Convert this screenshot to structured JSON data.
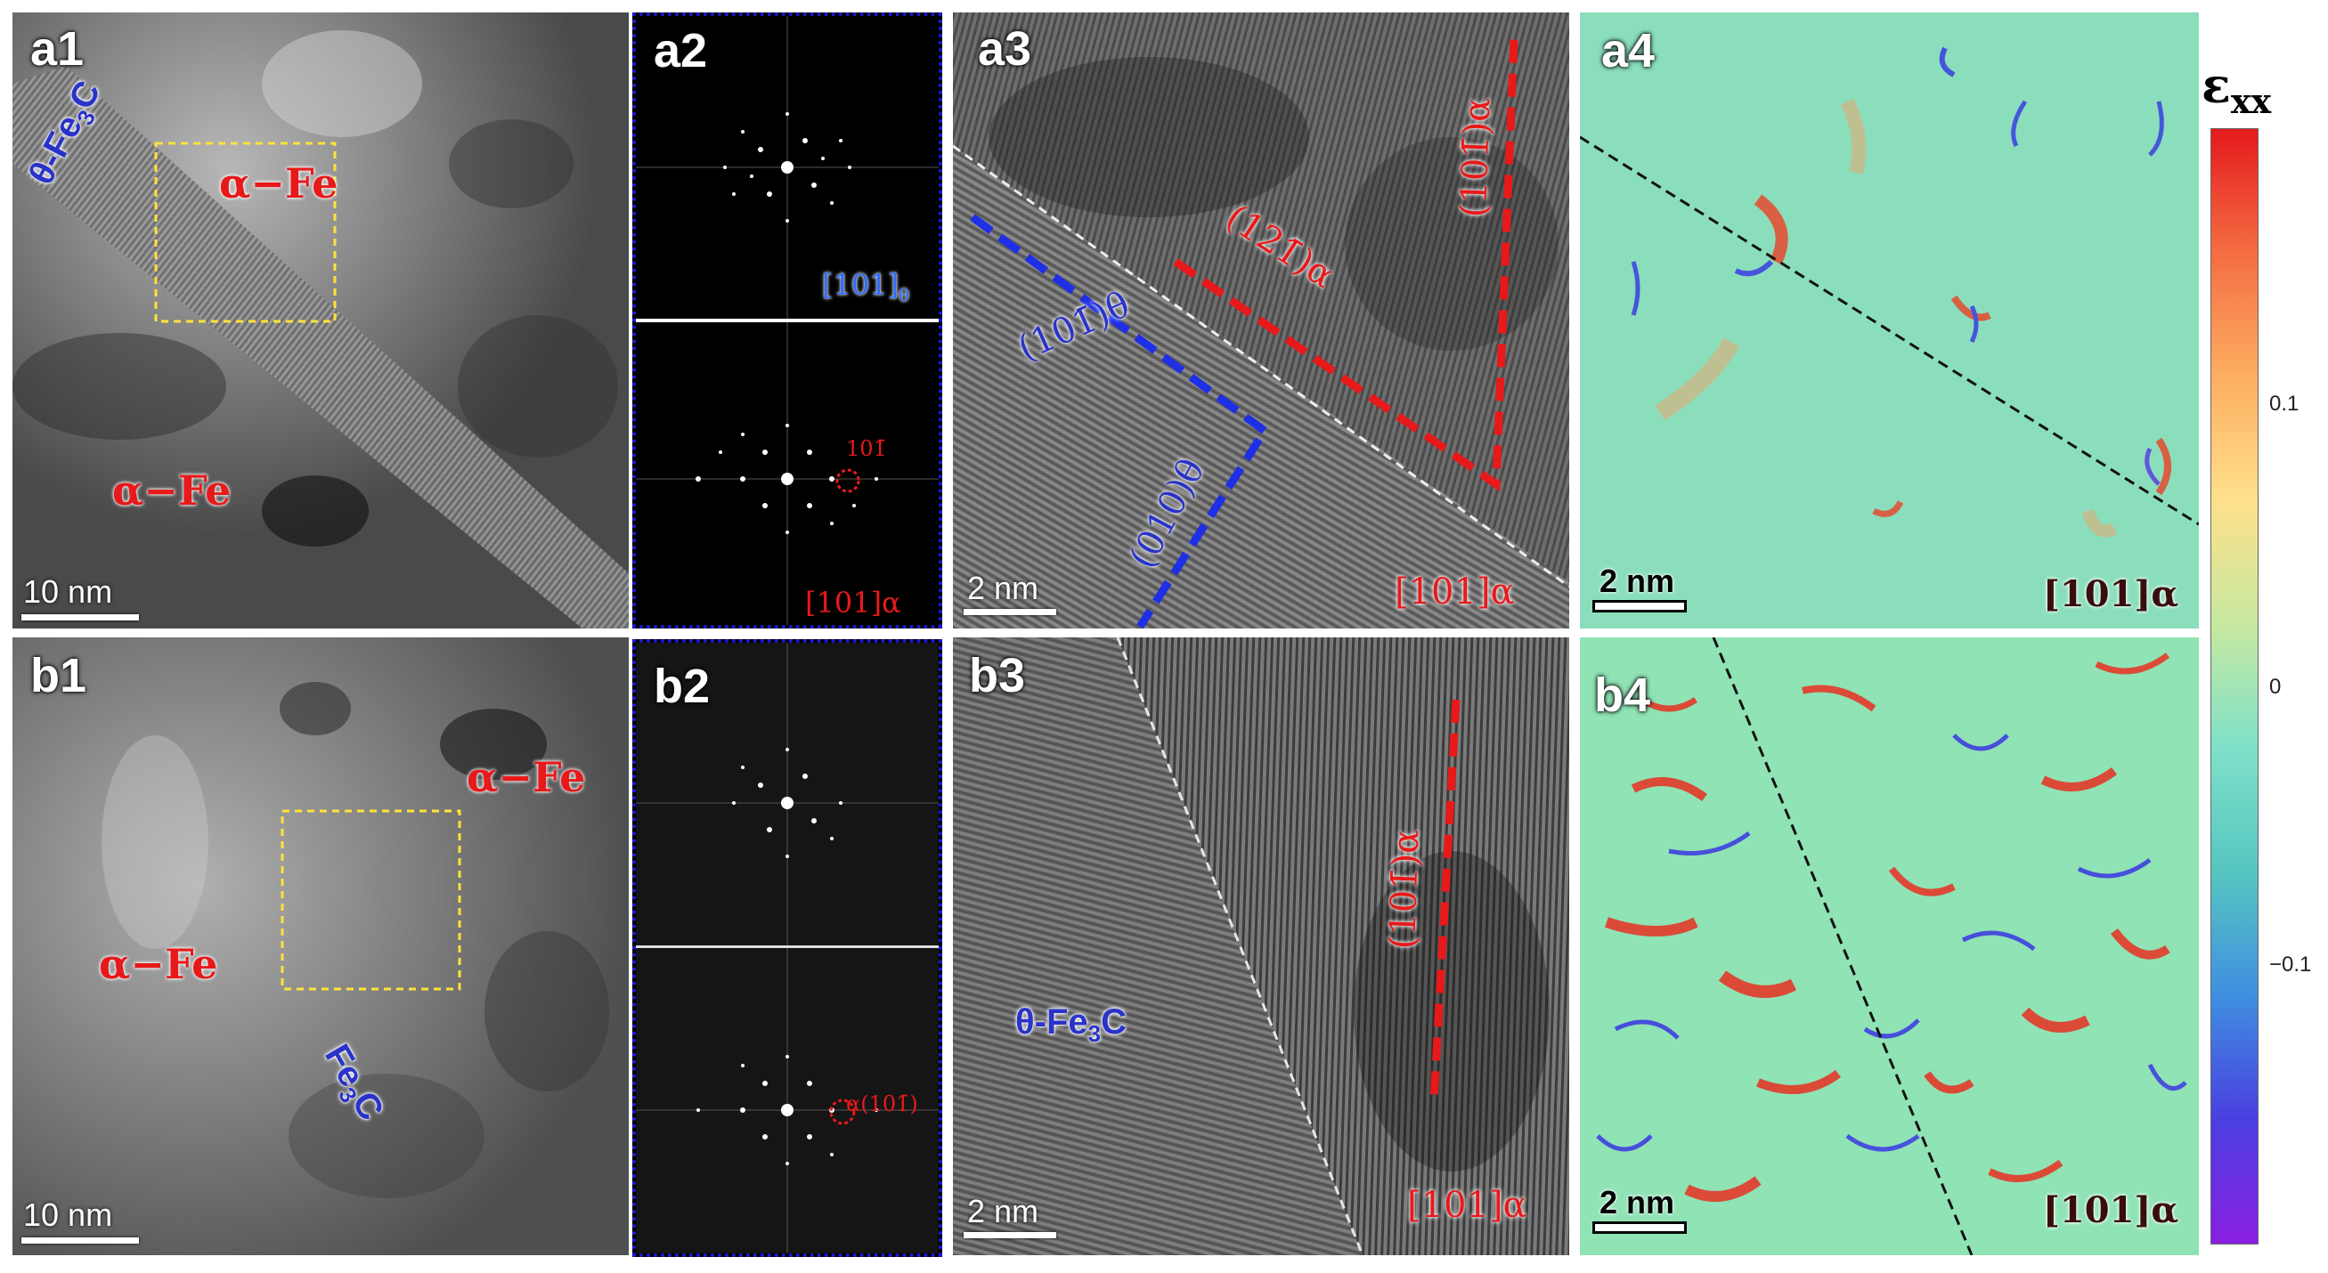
{
  "panels": {
    "a1": {
      "label": "a1",
      "phase_fe3c": "θ-Fe",
      "fe3c_sub": "3",
      "fe3c_tail": "C",
      "alpha_fe_1": "α−Fe",
      "alpha_fe_2": "α−Fe",
      "scale": "10 nm"
    },
    "a2": {
      "label": "a2",
      "zone_top": "[101]",
      "zone_top_sub": "θ",
      "zone_bottom": "[101]α",
      "spot": "101̄"
    },
    "a3": {
      "label": "a3",
      "plane_1": "(101̄)θ",
      "plane_2": "(010)θ",
      "plane_3": "(121̄)α",
      "plane_4": "(101̄)α",
      "zone": "[101]α",
      "scale": "2 nm"
    },
    "a4": {
      "label": "a4",
      "zone": "[101]α",
      "scale": "2 nm"
    },
    "b1": {
      "label": "b1",
      "alpha_fe_1": "α−Fe",
      "alpha_fe_2": "α−Fe",
      "fe3c": "Fe",
      "fe3c_sub": "3",
      "fe3c_tail": "C",
      "scale": "10 nm"
    },
    "b2": {
      "label": "b2",
      "spot": "α(101̄)"
    },
    "b3": {
      "label": "b3",
      "phase": "θ-Fe",
      "phase_sub": "3",
      "phase_tail": "C",
      "plane": "(101̄)α",
      "zone": "[101]α",
      "scale": "2 nm"
    },
    "b4": {
      "label": "b4",
      "zone": "[101]α",
      "scale": "2 nm"
    }
  },
  "colorbar": {
    "title": "ε",
    "title_sub": "xx",
    "ticks": [
      "0.1",
      "0",
      "−0.1"
    ],
    "colors": [
      "#e41a1c",
      "#f46d43",
      "#fdae61",
      "#fee08b",
      "#c7e9a0",
      "#7fe0c9",
      "#56c6c0",
      "#3f8fe0",
      "#4a3fe0",
      "#8a1fe0"
    ]
  }
}
